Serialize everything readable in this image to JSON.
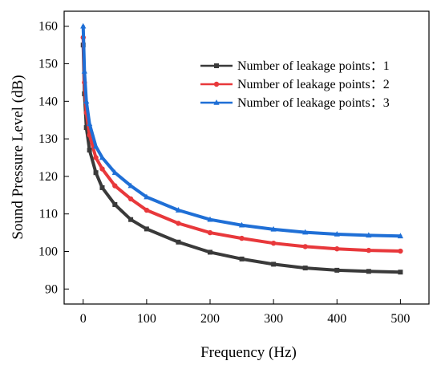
{
  "chart_data": {
    "type": "line",
    "title": "",
    "xlabel": "Frequency (Hz)",
    "ylabel": "Sound Pressure Level (dB)",
    "xlim": [
      -30,
      545
    ],
    "ylim": [
      86,
      164
    ],
    "xticks": [
      0,
      100,
      200,
      300,
      400,
      500
    ],
    "yticks": [
      90,
      100,
      110,
      120,
      130,
      140,
      150,
      160
    ],
    "grid": false,
    "legend_position": "top-right",
    "series": [
      {
        "name": "Number of leakage points：1",
        "color": "#3a3a3a",
        "marker": "square",
        "points": [
          [
            0,
            155
          ],
          [
            2,
            142
          ],
          [
            5,
            133
          ],
          [
            10,
            127
          ],
          [
            20,
            121
          ],
          [
            30,
            117
          ],
          [
            50,
            112.5
          ],
          [
            75,
            108.5
          ],
          [
            100,
            106
          ],
          [
            150,
            102.5
          ],
          [
            200,
            99.8
          ],
          [
            250,
            98
          ],
          [
            300,
            96.6
          ],
          [
            350,
            95.6
          ],
          [
            400,
            95
          ],
          [
            450,
            94.7
          ],
          [
            500,
            94.5
          ]
        ]
      },
      {
        "name": "Number of leakage points：2",
        "color": "#e8383b",
        "marker": "circle",
        "points": [
          [
            0,
            157
          ],
          [
            2,
            145
          ],
          [
            5,
            137
          ],
          [
            10,
            131
          ],
          [
            20,
            125
          ],
          [
            30,
            122
          ],
          [
            50,
            117.5
          ],
          [
            75,
            114
          ],
          [
            100,
            111
          ],
          [
            150,
            107.5
          ],
          [
            200,
            105
          ],
          [
            250,
            103.5
          ],
          [
            300,
            102.2
          ],
          [
            350,
            101.3
          ],
          [
            400,
            100.7
          ],
          [
            450,
            100.3
          ],
          [
            500,
            100.1
          ]
        ]
      },
      {
        "name": "Number of leakage points：3",
        "color": "#1f6fd6",
        "marker": "triangle",
        "points": [
          [
            0,
            160
          ],
          [
            2,
            148
          ],
          [
            5,
            140
          ],
          [
            10,
            134
          ],
          [
            20,
            128
          ],
          [
            30,
            125
          ],
          [
            50,
            121
          ],
          [
            75,
            117.5
          ],
          [
            100,
            114.5
          ],
          [
            150,
            111
          ],
          [
            200,
            108.5
          ],
          [
            250,
            107
          ],
          [
            300,
            105.9
          ],
          [
            350,
            105.1
          ],
          [
            400,
            104.6
          ],
          [
            450,
            104.3
          ],
          [
            500,
            104.1
          ]
        ]
      }
    ]
  }
}
